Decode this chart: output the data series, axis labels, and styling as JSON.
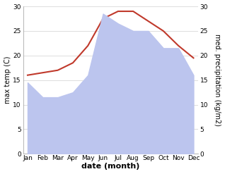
{
  "months": [
    "Jan",
    "Feb",
    "Mar",
    "Apr",
    "May",
    "Jun",
    "Jul",
    "Aug",
    "Sep",
    "Oct",
    "Nov",
    "Dec"
  ],
  "x": [
    0,
    1,
    2,
    3,
    4,
    5,
    6,
    7,
    8,
    9,
    10,
    11
  ],
  "temperature": [
    16.0,
    16.5,
    17.0,
    18.5,
    22.0,
    27.5,
    29.0,
    29.0,
    27.0,
    25.0,
    22.0,
    19.5
  ],
  "precipitation": [
    14.5,
    11.5,
    11.5,
    12.5,
    16.0,
    28.5,
    26.5,
    25.0,
    25.0,
    21.5,
    21.5,
    16.0
  ],
  "temp_color": "#c0392b",
  "precip_fill_color": "#bcc5ee",
  "title": "",
  "xlabel": "date (month)",
  "ylabel_left": "max temp (C)",
  "ylabel_right": "med. precipitation (kg/m2)",
  "ylim": [
    0,
    30
  ],
  "yticks": [
    0,
    5,
    10,
    15,
    20,
    25,
    30
  ],
  "bg_color": "#ffffff",
  "grid_color": "#d0d0d0",
  "font_size_label": 7,
  "font_size_tick": 6.5,
  "xlabel_fontsize": 8
}
